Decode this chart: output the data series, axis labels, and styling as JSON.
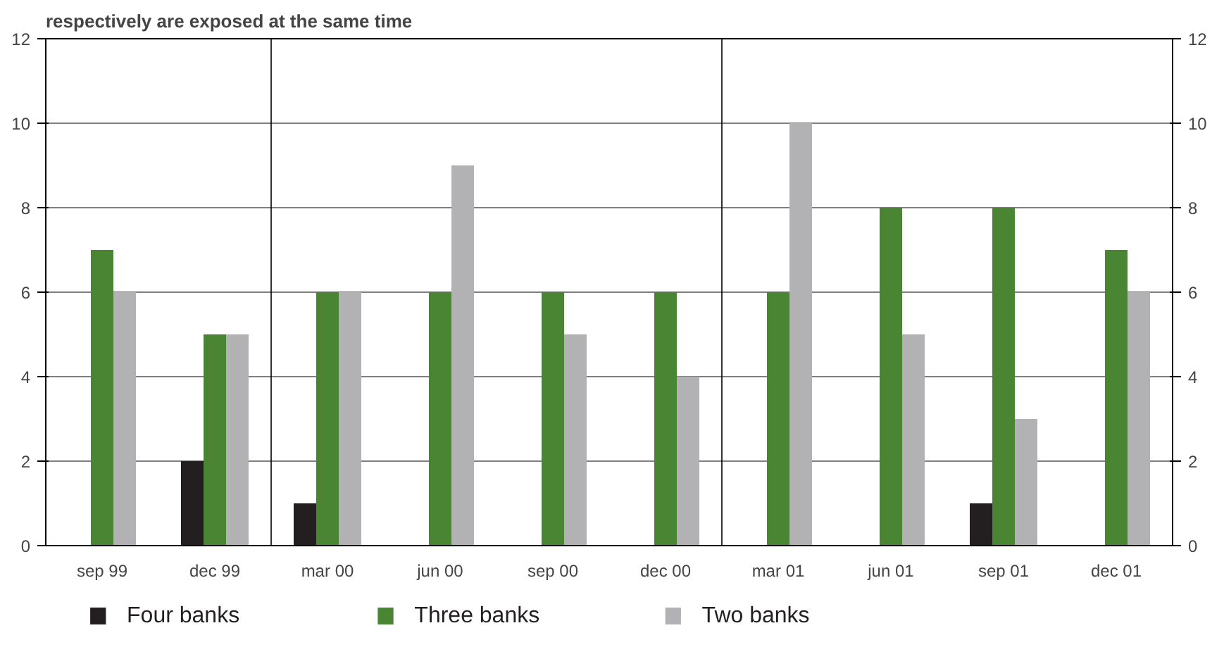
{
  "chart_data": {
    "type": "bar",
    "title": "respectively are exposed at the same time",
    "categories": [
      "sep 99",
      "dec 99",
      "mar 00",
      "jun 00",
      "sep 00",
      "dec 00",
      "mar 01",
      "jun 01",
      "sep 01",
      "dec 01"
    ],
    "series": [
      {
        "name": "Four banks",
        "color": "#231f20",
        "values": [
          null,
          2,
          1,
          null,
          null,
          null,
          null,
          null,
          1,
          null
        ]
      },
      {
        "name": "Three banks",
        "color": "#4a8533",
        "values": [
          7,
          5,
          6,
          6,
          6,
          6,
          6,
          8,
          8,
          7
        ]
      },
      {
        "name": "Two banks",
        "color": "#b2b2b4",
        "values": [
          6,
          5,
          6,
          9,
          5,
          4,
          10,
          5,
          3,
          6
        ]
      }
    ],
    "ylim": [
      0,
      12
    ],
    "yticks": [
      0,
      2,
      4,
      6,
      8,
      10,
      12
    ],
    "y2lim": [
      0,
      12
    ],
    "y2ticks": [
      0,
      2,
      4,
      6,
      8,
      10,
      12
    ],
    "grid": "y",
    "legend": "bottom"
  }
}
